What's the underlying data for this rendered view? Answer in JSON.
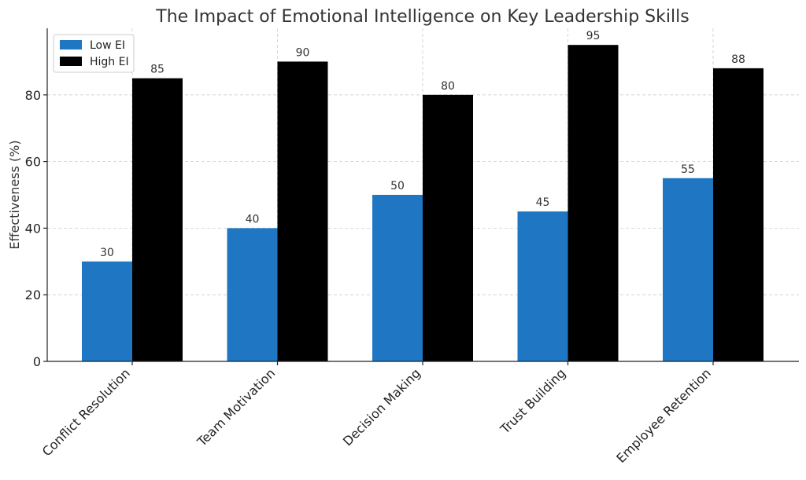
{
  "chart_data": {
    "type": "bar",
    "title": "The Impact of Emotional Intelligence on Key Leadership Skills",
    "xlabel": "",
    "ylabel": "Effectiveness (%)",
    "ylim": [
      0,
      100
    ],
    "yticks": [
      0,
      20,
      40,
      60,
      80
    ],
    "grid": true,
    "legend_position": "top-left",
    "categories": [
      "Conflict Resolution",
      "Team Motivation",
      "Decision Making",
      "Trust Building",
      "Employee Retention"
    ],
    "series": [
      {
        "name": "Low EI",
        "color": "#1f77c4",
        "values": [
          30,
          40,
          50,
          45,
          55
        ]
      },
      {
        "name": "High EI",
        "color": "#000000",
        "values": [
          85,
          90,
          80,
          95,
          88
        ]
      }
    ]
  }
}
